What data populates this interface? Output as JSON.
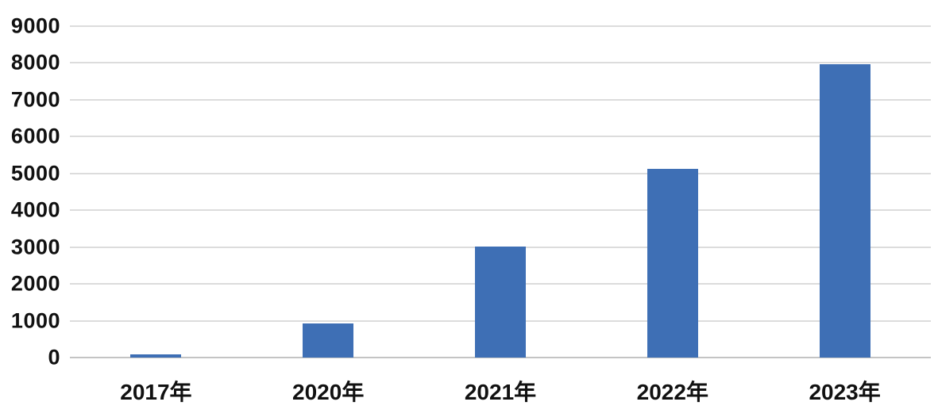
{
  "chart_data": {
    "type": "bar",
    "title": "",
    "xlabel": "",
    "ylabel": "",
    "categories": [
      "2017年",
      "2020年",
      "2021年",
      "2022年",
      "2023年"
    ],
    "values": [
      90,
      920,
      3020,
      5130,
      7960
    ],
    "ylim": [
      0,
      9000
    ],
    "ytick_step": 1000,
    "yticks": [
      0,
      1000,
      2000,
      3000,
      4000,
      5000,
      6000,
      7000,
      8000,
      9000
    ],
    "grid": "horizontal gridlines on, no vertical gridlines, no legend",
    "legend_position": "none",
    "colors": {
      "bar": "#3e6fb5",
      "gridline": "#dcdcdc",
      "axis_line": "#c4c4c4",
      "text": "#111111",
      "background": "#ffffff"
    }
  }
}
